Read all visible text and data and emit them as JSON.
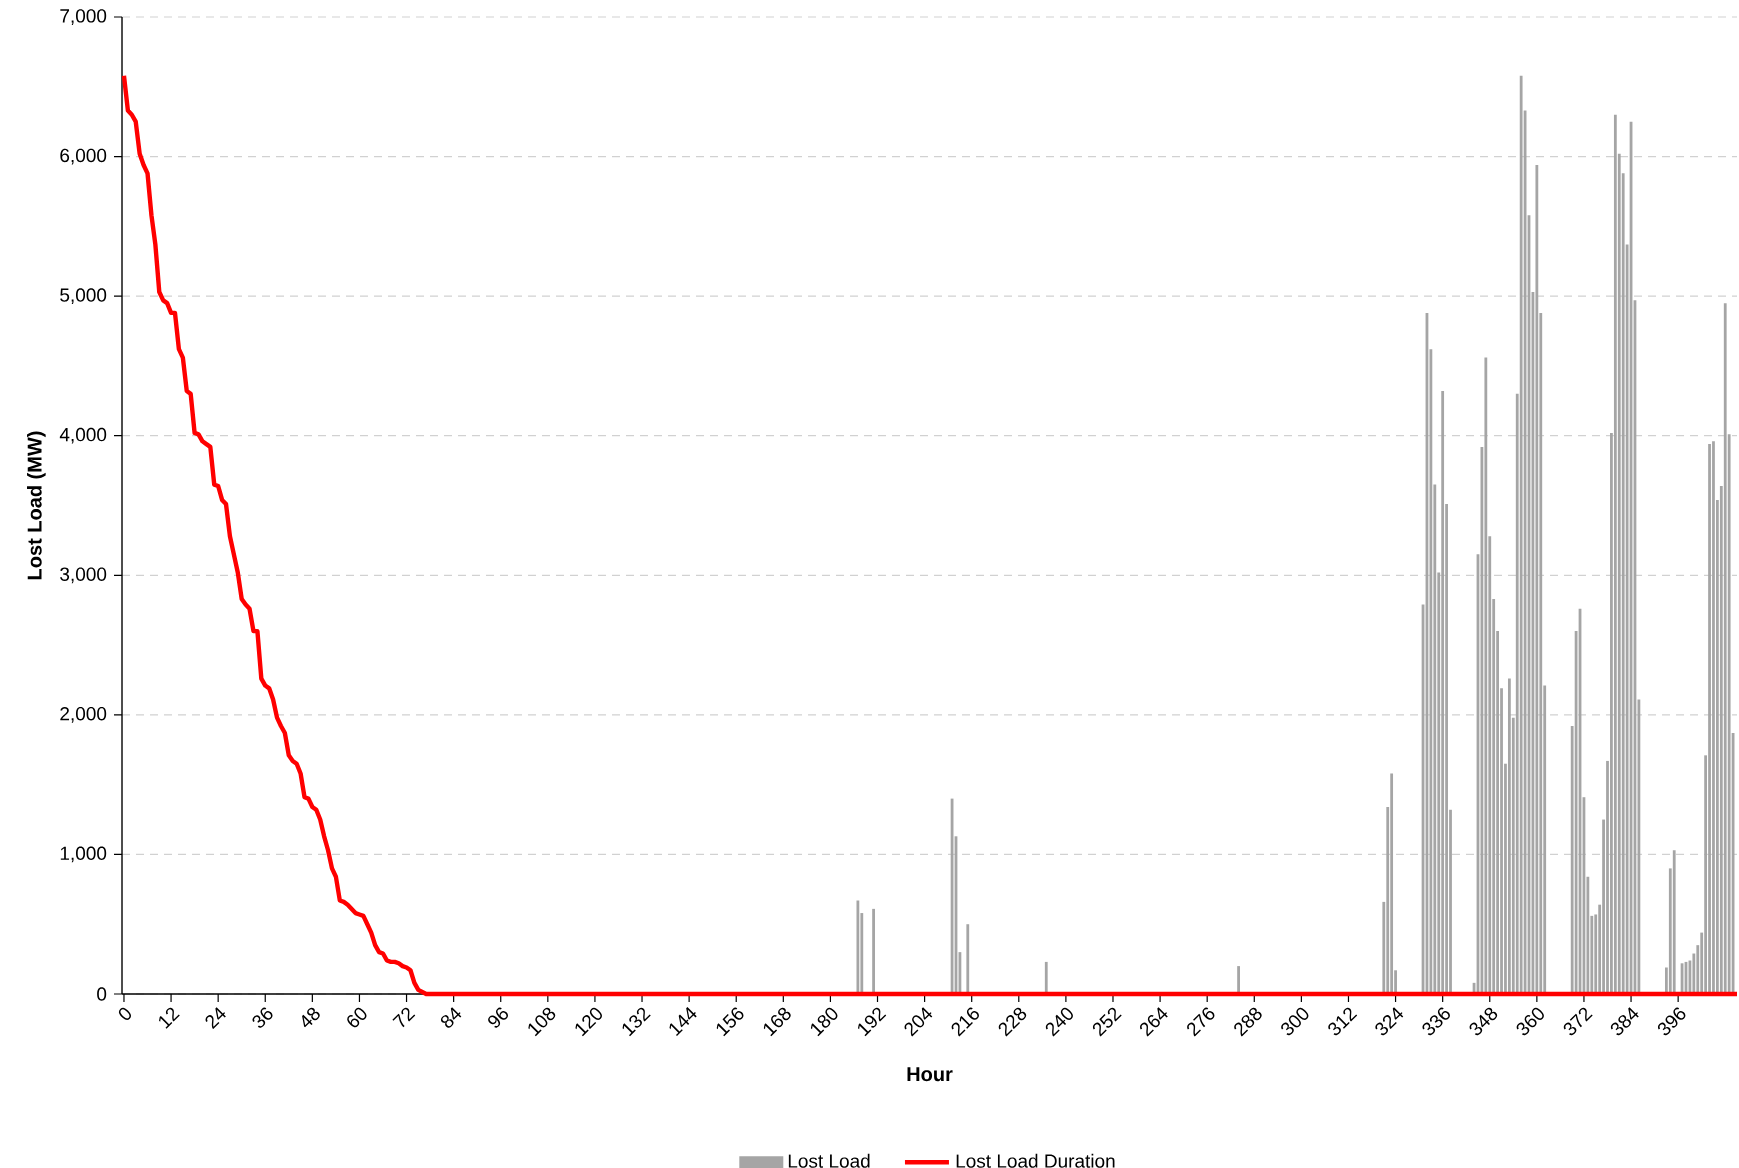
{
  "chart_data": {
    "type": "bar",
    "xlabel": "Hour",
    "ylabel": "Lost Load (MW)",
    "xlim": [
      -0.5,
      411
    ],
    "ylim": [
      0,
      7000
    ],
    "xticks": [
      0,
      12,
      24,
      36,
      48,
      60,
      72,
      84,
      96,
      108,
      120,
      132,
      144,
      156,
      168,
      180,
      192,
      204,
      216,
      228,
      240,
      252,
      264,
      276,
      288,
      300,
      312,
      324,
      336,
      348,
      360,
      372,
      384,
      396
    ],
    "yticks": [
      {
        "value": 0,
        "label": "0"
      },
      {
        "value": 1000,
        "label": "1,000"
      },
      {
        "value": 2000,
        "label": "2,000"
      },
      {
        "value": 3000,
        "label": "3,000"
      },
      {
        "value": 4000,
        "label": "4,000"
      },
      {
        "value": 5000,
        "label": "5,000"
      },
      {
        "value": 6000,
        "label": "6,000"
      },
      {
        "value": 7000,
        "label": "7,000"
      }
    ],
    "grid": "y",
    "legend": "bottom",
    "series": [
      {
        "name": "Lost Load",
        "color": "#a5a5a5",
        "x": [
          187,
          188,
          191,
          211,
          212,
          213,
          215,
          235,
          284,
          321,
          322,
          323,
          324,
          331,
          332,
          333,
          334,
          335,
          336,
          337,
          338,
          344,
          345,
          346,
          347,
          348,
          349,
          350,
          351,
          352,
          353,
          354,
          355,
          356,
          357,
          358,
          359,
          360,
          361,
          362,
          369,
          370,
          371,
          372,
          373,
          374,
          375,
          376,
          377,
          378,
          379,
          380,
          381,
          382,
          383,
          384,
          385,
          386,
          393,
          394,
          395,
          396,
          397,
          398,
          399,
          400,
          401,
          402,
          403,
          404,
          405,
          406,
          407,
          408,
          409,
          410
        ],
        "values": [
          670,
          580,
          610,
          1400,
          1130,
          300,
          500,
          230,
          200,
          660,
          1340,
          1580,
          170,
          2790,
          4880,
          4620,
          3650,
          3020,
          4320,
          3510,
          1320,
          80,
          3150,
          3920,
          4560,
          3280,
          2830,
          2600,
          2190,
          1650,
          2260,
          1980,
          4300,
          6580,
          6330,
          5580,
          5030,
          5940,
          4880,
          2210,
          1920,
          2600,
          2760,
          1410,
          840,
          560,
          570,
          640,
          1250,
          1670,
          4020,
          6300,
          6020,
          5880,
          5370,
          6250,
          4970,
          2110,
          190,
          900,
          1030,
          null,
          220,
          230,
          240,
          290,
          350,
          440,
          1710,
          3940,
          3960,
          3540,
          3640,
          4950,
          4010,
          1870
        ]
      },
      {
        "name": "Lost Load Duration",
        "type": "line",
        "color": "#ff0000",
        "x": [
          0,
          1,
          2,
          3,
          4,
          5,
          6,
          7,
          8,
          9,
          10,
          11,
          12,
          13,
          14,
          15,
          16,
          17,
          18,
          19,
          20,
          21,
          22,
          23,
          24,
          25,
          26,
          27,
          28,
          29,
          30,
          31,
          32,
          33,
          34,
          35,
          36,
          37,
          38,
          39,
          40,
          41,
          42,
          43,
          44,
          45,
          46,
          47,
          48,
          49,
          50,
          51,
          52,
          53,
          54,
          55,
          56,
          57,
          58,
          59,
          60,
          61,
          62,
          63,
          64,
          65,
          66,
          67,
          68,
          69,
          70,
          71,
          72,
          73,
          74,
          75,
          77,
          411
        ],
        "values": [
          6580,
          6330,
          6300,
          6250,
          6020,
          5940,
          5880,
          5580,
          5370,
          5030,
          4970,
          4950,
          4880,
          4880,
          4620,
          4560,
          4320,
          4300,
          4020,
          4010,
          3960,
          3940,
          3920,
          3650,
          3640,
          3540,
          3510,
          3280,
          3150,
          3020,
          2830,
          2790,
          2760,
          2600,
          2600,
          2260,
          2210,
          2190,
          2110,
          1980,
          1920,
          1870,
          1710,
          1670,
          1650,
          1580,
          1410,
          1400,
          1340,
          1320,
          1250,
          1130,
          1030,
          900,
          840,
          670,
          660,
          640,
          610,
          580,
          570,
          560,
          500,
          440,
          350,
          300,
          290,
          240,
          230,
          230,
          220,
          200,
          190,
          170,
          80,
          30,
          0,
          0
        ]
      }
    ]
  }
}
